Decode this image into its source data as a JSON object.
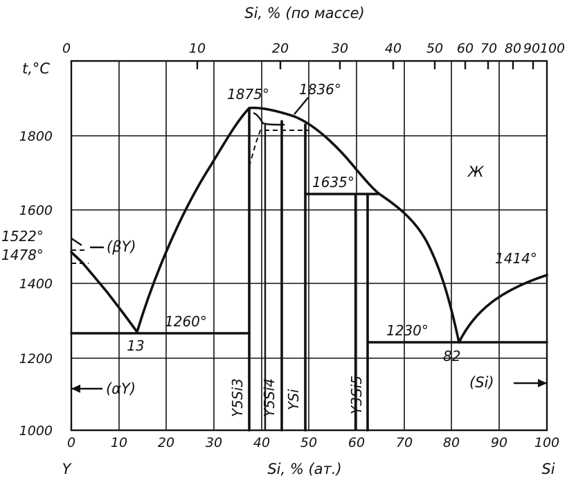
{
  "diagram": {
    "top_axis_title": "Si, % (по массе)",
    "top_ticks": [
      "0",
      "10",
      "20",
      "30",
      "40",
      "50",
      "60",
      "70",
      "80",
      "90",
      "100"
    ],
    "y_axis_title": "t,°C",
    "y_ticks": [
      "1000",
      "1200",
      "1400",
      "1600",
      "1800"
    ],
    "bottom_ticks": [
      "0",
      "10",
      "20",
      "30",
      "40",
      "50",
      "60",
      "70",
      "80",
      "90",
      "100"
    ],
    "bottom_axis_title": "Si, % (ат.)",
    "left_element": "Y",
    "right_element": "Si",
    "annotations": {
      "t_1522": "1522°",
      "t_1478": "1478°",
      "beta_y": "(βY)",
      "t_1875": "1875°",
      "t_1836": "1836°",
      "t_1635": "1635°",
      "liquid": "Ж",
      "t_1414": "1414°",
      "t_1260": "1260°",
      "eutectic_13": "13",
      "t_1230": "1230°",
      "eutectic_82": "82",
      "alpha_y": "(αY)",
      "si_phase": "(Si)"
    },
    "compounds": [
      "Y5Si3",
      "Y5Si4",
      "YSi",
      "Y3Si5"
    ]
  }
}
